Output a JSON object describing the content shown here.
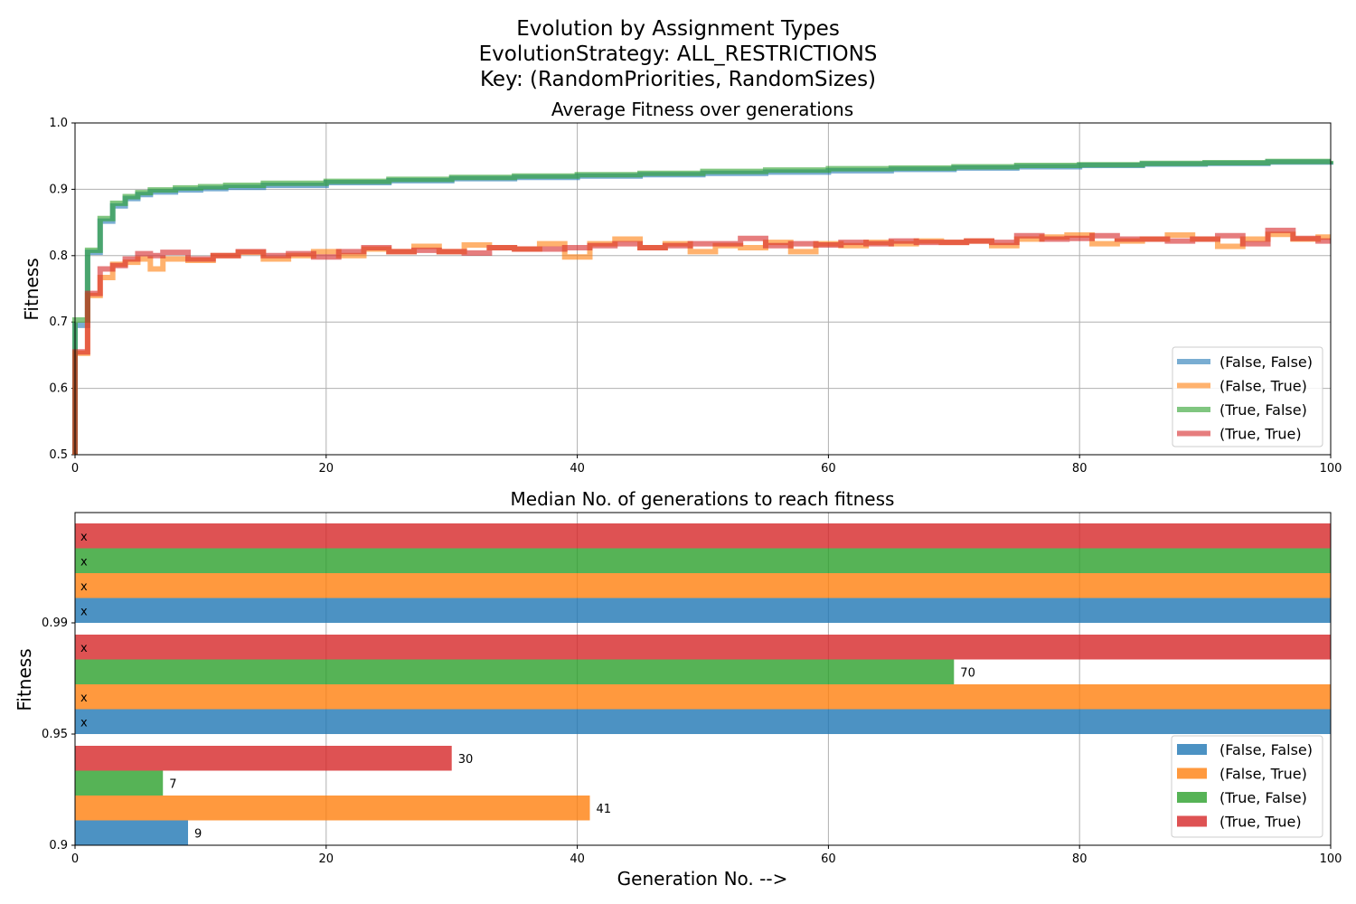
{
  "figure": {
    "suptitle_lines": [
      "Evolution by Assignment Types",
      "EvolutionStrategy: ALL_RESTRICTIONS",
      "Key: (RandomPriorities, RandomSizes)"
    ]
  },
  "colors": {
    "(False, False)": "#1f77b4",
    "(False, True)": "#ff7f0e",
    "(True, False)": "#2ca02c",
    "(True, True)": "#d62728"
  },
  "chart_data": [
    {
      "type": "line",
      "title": "Average Fitness over generations",
      "xlabel": "",
      "ylabel": "Fitness",
      "xlim": [
        0,
        100
      ],
      "ylim": [
        0.5,
        1.0
      ],
      "x_ticks": [
        "0",
        "20",
        "40",
        "60",
        "80",
        "100"
      ],
      "y_ticks": [
        "0.5",
        "0.6",
        "0.7",
        "0.8",
        "0.9",
        "1.0"
      ],
      "grid": true,
      "legend": "lower-right",
      "step": true,
      "series": [
        {
          "name": "(False, False)",
          "x": [
            0,
            1,
            2,
            3,
            4,
            5,
            6,
            8,
            10,
            12,
            15,
            20,
            25,
            30,
            35,
            40,
            45,
            50,
            55,
            60,
            65,
            70,
            75,
            80,
            85,
            90,
            95,
            100
          ],
          "values": [
            0.695,
            0.805,
            0.852,
            0.875,
            0.886,
            0.892,
            0.896,
            0.899,
            0.901,
            0.903,
            0.906,
            0.91,
            0.913,
            0.916,
            0.918,
            0.92,
            0.922,
            0.924,
            0.926,
            0.928,
            0.93,
            0.932,
            0.934,
            0.936,
            0.938,
            0.939,
            0.941,
            0.942
          ]
        },
        {
          "name": "(False, True)",
          "x": [
            0,
            1,
            2,
            3,
            4,
            5,
            6,
            7,
            9,
            11,
            13,
            15,
            17,
            19,
            21,
            23,
            25,
            27,
            29,
            31,
            33,
            35,
            37,
            39,
            41,
            43,
            45,
            47,
            49,
            51,
            53,
            55,
            57,
            59,
            61,
            63,
            65,
            67,
            69,
            71,
            73,
            75,
            77,
            79,
            81,
            83,
            85,
            87,
            89,
            91,
            93,
            95,
            97,
            99,
            100
          ],
          "values": [
            0.653,
            0.74,
            0.767,
            0.787,
            0.79,
            0.795,
            0.78,
            0.795,
            0.793,
            0.8,
            0.805,
            0.795,
            0.8,
            0.806,
            0.8,
            0.81,
            0.806,
            0.814,
            0.806,
            0.816,
            0.812,
            0.81,
            0.818,
            0.798,
            0.818,
            0.825,
            0.812,
            0.818,
            0.806,
            0.815,
            0.812,
            0.82,
            0.806,
            0.818,
            0.815,
            0.82,
            0.818,
            0.822,
            0.82,
            0.822,
            0.815,
            0.825,
            0.828,
            0.831,
            0.818,
            0.822,
            0.825,
            0.831,
            0.825,
            0.814,
            0.825,
            0.832,
            0.825,
            0.828,
            0.828
          ]
        },
        {
          "name": "(True, False)",
          "x": [
            0,
            1,
            2,
            3,
            4,
            5,
            6,
            8,
            10,
            12,
            15,
            20,
            25,
            30,
            35,
            40,
            45,
            50,
            55,
            60,
            65,
            70,
            75,
            80,
            85,
            90,
            95,
            100
          ],
          "values": [
            0.703,
            0.808,
            0.856,
            0.879,
            0.889,
            0.895,
            0.899,
            0.902,
            0.904,
            0.906,
            0.909,
            0.912,
            0.915,
            0.918,
            0.92,
            0.922,
            0.924,
            0.927,
            0.929,
            0.931,
            0.932,
            0.934,
            0.936,
            0.937,
            0.939,
            0.94,
            0.942,
            0.943
          ]
        },
        {
          "name": "(True, True)",
          "x": [
            0,
            1,
            2,
            3,
            4,
            5,
            6,
            7,
            9,
            11,
            13,
            15,
            17,
            19,
            21,
            23,
            25,
            27,
            29,
            31,
            33,
            35,
            37,
            39,
            41,
            43,
            45,
            47,
            49,
            51,
            53,
            55,
            57,
            59,
            61,
            63,
            65,
            67,
            69,
            71,
            73,
            75,
            77,
            79,
            81,
            83,
            85,
            87,
            89,
            91,
            93,
            95,
            97,
            99,
            100
          ],
          "values": [
            0.655,
            0.743,
            0.78,
            0.785,
            0.795,
            0.803,
            0.8,
            0.805,
            0.795,
            0.8,
            0.806,
            0.8,
            0.803,
            0.798,
            0.806,
            0.812,
            0.806,
            0.808,
            0.806,
            0.804,
            0.812,
            0.81,
            0.81,
            0.812,
            0.815,
            0.818,
            0.812,
            0.815,
            0.818,
            0.818,
            0.826,
            0.815,
            0.818,
            0.816,
            0.82,
            0.818,
            0.822,
            0.82,
            0.82,
            0.822,
            0.82,
            0.83,
            0.825,
            0.826,
            0.83,
            0.825,
            0.825,
            0.822,
            0.825,
            0.83,
            0.818,
            0.838,
            0.826,
            0.822,
            0.822
          ]
        }
      ]
    },
    {
      "type": "bar",
      "orientation": "horizontal",
      "title": "Median No. of generations to reach fitness",
      "xlabel": "Generation No. -->",
      "ylabel": "Fitness",
      "xlim": [
        0,
        100
      ],
      "x_ticks": [
        "0",
        "20",
        "40",
        "60",
        "80",
        "100"
      ],
      "categories": [
        "0.9",
        "0.95",
        "0.99"
      ],
      "grid": true,
      "legend": "lower-right",
      "not_reached_value": 100,
      "series": [
        {
          "name": "(False, False)",
          "values": [
            9,
            100,
            100
          ],
          "labels": [
            "9",
            "x",
            "x"
          ]
        },
        {
          "name": "(False, True)",
          "values": [
            41,
            100,
            100
          ],
          "labels": [
            "41",
            "x",
            "x"
          ]
        },
        {
          "name": "(True, False)",
          "values": [
            7,
            70,
            100
          ],
          "labels": [
            "7",
            "70",
            "x"
          ]
        },
        {
          "name": "(True, True)",
          "values": [
            30,
            100,
            100
          ],
          "labels": [
            "30",
            "x",
            "x"
          ]
        }
      ]
    }
  ]
}
